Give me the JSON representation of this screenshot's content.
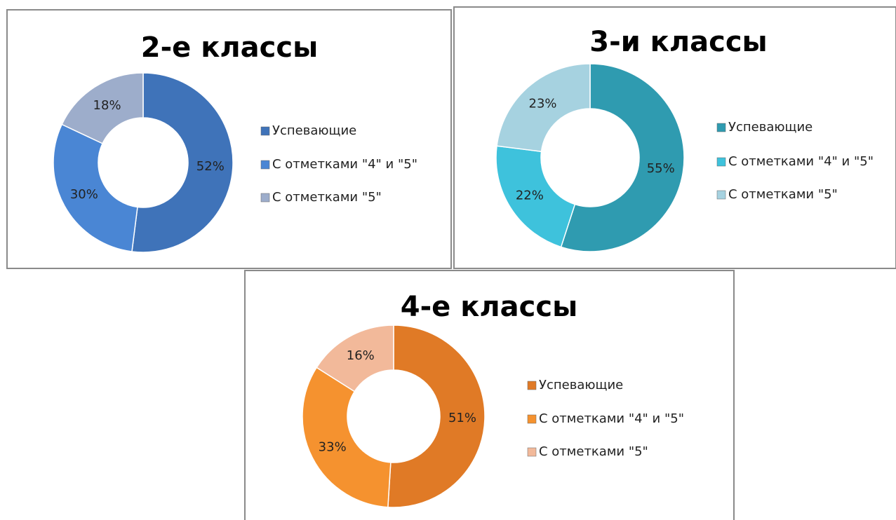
{
  "chart_data": [
    {
      "type": "doughnut",
      "title": "2-е классы",
      "categories": [
        "Успевающие",
        "С отметками \"4\" и \"5\"",
        "С отметками \"5\""
      ],
      "values": [
        52,
        30,
        18
      ],
      "value_labels": [
        "52%",
        "30%",
        "18%"
      ],
      "colors": [
        "#3f73b9",
        "#4a86d4",
        "#9dadcb"
      ]
    },
    {
      "type": "doughnut",
      "title": "3-и классы",
      "categories": [
        "Успевающие",
        "С отметками \"4\" и \"5\"",
        "С отметками \"5\""
      ],
      "values": [
        55,
        22,
        23
      ],
      "value_labels": [
        "55%",
        "22%",
        "23%"
      ],
      "colors": [
        "#2f9bb0",
        "#3ec2dc",
        "#a6d2e0"
      ]
    },
    {
      "type": "doughnut",
      "title": "4-е классы",
      "categories": [
        "Успевающие",
        "С отметками \"4\" и \"5\"",
        "С отметками \"5\""
      ],
      "values": [
        51,
        33,
        16
      ],
      "value_labels": [
        "51%",
        "33%",
        "16%"
      ],
      "colors": [
        "#e07a26",
        "#f5922f",
        "#f2b99a"
      ]
    }
  ]
}
